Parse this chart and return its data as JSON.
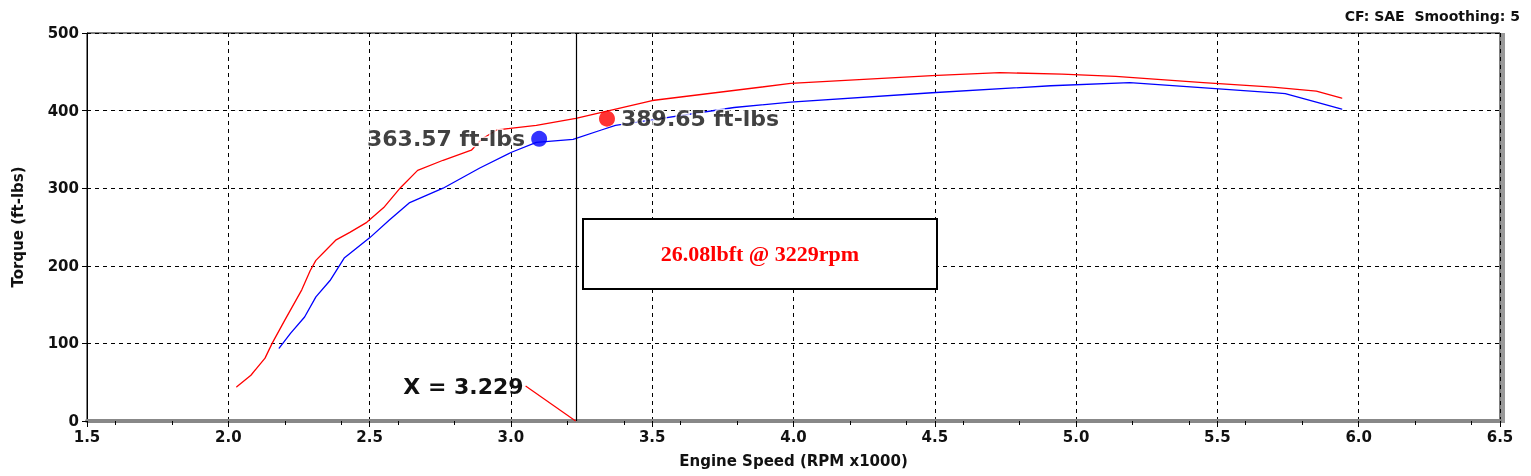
{
  "chart_data": {
    "type": "line",
    "xlabel": "Engine Speed (RPM x1000)",
    "ylabel": "Torque (ft-lbs)",
    "xlim": [
      1.5,
      6.5
    ],
    "xticks": [
      1.5,
      {
        "value": 2,
        "label": "2.0"
      },
      2.5,
      {
        "value": 3,
        "label": "3.0"
      },
      3.5,
      {
        "value": 4,
        "label": "4.0"
      },
      4.5,
      {
        "value": 5,
        "label": "5.0"
      },
      5.5,
      {
        "value": 6,
        "label": "6.0"
      },
      6.5
    ],
    "ylim": [
      0,
      500
    ],
    "yticks": [
      0,
      100,
      200,
      300,
      400,
      500
    ],
    "grid": true,
    "line_style": "solid",
    "marker": "none",
    "series": [
      {
        "color": "#ff0000",
        "x": [
          2.03,
          2.08,
          2.13,
          2.155,
          2.2,
          2.26,
          2.29,
          2.31,
          2.38,
          2.43,
          2.49,
          2.55,
          2.61,
          2.67,
          2.76,
          2.86,
          2.9,
          2.95,
          3.09,
          3.23,
          3.5,
          3.99,
          4.49,
          4.73,
          4.95,
          5.14,
          5.45,
          5.67,
          5.85,
          5.94
        ],
        "values": [
          44,
          59,
          81,
          100,
          130,
          169,
          194,
          207,
          233,
          243,
          256,
          275,
          301,
          323,
          336,
          349,
          364,
          375,
          381,
          390,
          413,
          435,
          445,
          449,
          447,
          444,
          436,
          431,
          425,
          416
        ]
      },
      {
        "color": "#0000ff",
        "x": [
          2.18,
          2.22,
          2.27,
          2.31,
          2.36,
          2.41,
          2.5,
          2.57,
          2.64,
          2.76,
          2.89,
          3.0,
          3.09,
          3.22,
          3.32,
          3.37,
          3.79,
          3.99,
          4.49,
          4.91,
          5.19,
          5.43,
          5.74,
          5.85,
          5.94
        ],
        "values": [
          94,
          113,
          134,
          160,
          181,
          210,
          236,
          259,
          281,
          300,
          326,
          346,
          359,
          363,
          375,
          381,
          404,
          411,
          423,
          432,
          436,
          430,
          422,
          411,
          402
        ]
      },
      {
        "type": "scatter",
        "marker": "circle",
        "color": "#0000ff",
        "x": [
          3.1
        ],
        "values": [
          363.57
        ],
        "value_labels": [
          "363.57 ft-lbs"
        ]
      },
      {
        "type": "scatter",
        "marker": "circle",
        "color": "#ff0000",
        "x": [
          3.34
        ],
        "values": [
          389.65
        ],
        "value_labels": [
          "389.65 ft-lbs"
        ]
      }
    ],
    "ref_lines": [
      {
        "axis": "x",
        "value": 3.229,
        "color": "#000000"
      }
    ],
    "annotations": [
      {
        "text": "X = 3.229",
        "x": 3.229,
        "y": 0
      },
      "26.08lbft @ 3229rpm",
      "CF: SAE  Smoothing: 5"
    ]
  }
}
